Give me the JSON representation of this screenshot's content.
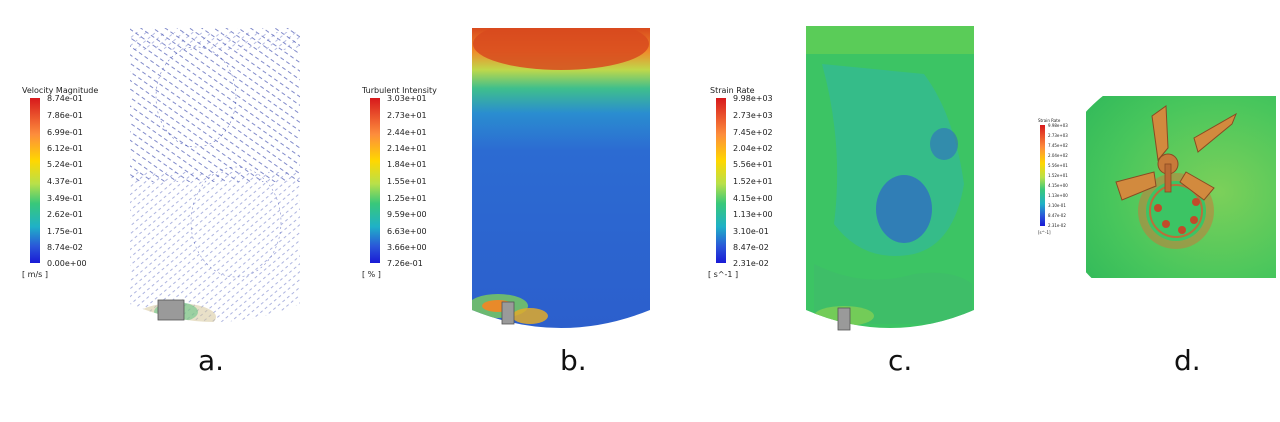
{
  "panels": [
    {
      "caption": "a.",
      "legend_title": "Velocity Magnitude",
      "unit": "[ m/s ]",
      "ticks": [
        "8.74e-01",
        "7.86e-01",
        "6.99e-01",
        "6.12e-01",
        "5.24e-01",
        "4.37e-01",
        "3.49e-01",
        "2.62e-01",
        "1.75e-01",
        "8.74e-02",
        "0.00e+00"
      ]
    },
    {
      "caption": "b.",
      "legend_title": "Turbulent Intensity",
      "unit": "[ % ]",
      "ticks": [
        "3.03e+01",
        "2.73e+01",
        "2.44e+01",
        "2.14e+01",
        "1.84e+01",
        "1.55e+01",
        "1.25e+01",
        "9.59e+00",
        "6.63e+00",
        "3.66e+00",
        "7.26e-01"
      ]
    },
    {
      "caption": "c.",
      "legend_title": "Strain Rate",
      "unit": "[ s^-1 ]",
      "ticks": [
        "9.98e+03",
        "2.73e+03",
        "7.45e+02",
        "2.04e+02",
        "5.56e+01",
        "1.52e+01",
        "4.15e+00",
        "1.13e+00",
        "3.10e-01",
        "8.47e-02",
        "2.31e-02"
      ]
    },
    {
      "caption": "d.",
      "legend_title": "Strain Rate",
      "unit": "[s^-1]",
      "ticks": [
        "9.98e+03",
        "2.73e+03",
        "7.45e+02",
        "2.04e+02",
        "5.56e+01",
        "1.52e+01",
        "4.15e+00",
        "1.13e+00",
        "3.10e-01",
        "8.47e-02",
        "2.31e-02"
      ]
    }
  ],
  "colors": {
    "colormap_top": "#d7191c",
    "colormap_bottom": "#1a1ad6",
    "vector_blue": "#2b3aa8",
    "field_blue": "#2f64c9",
    "field_green": "#3cc464",
    "impeller_gray": "#9a9a9a"
  }
}
